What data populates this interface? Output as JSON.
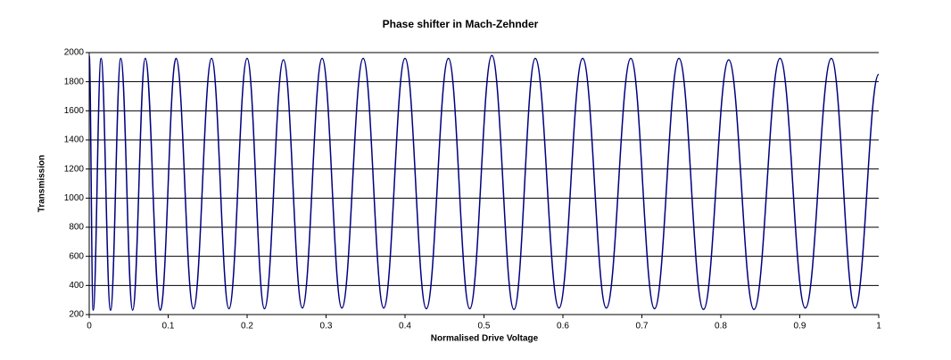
{
  "chart_data": {
    "type": "line",
    "title": "Phase shifter in Mach-Zehnder",
    "x_label": "Normalised Drive Voltage",
    "y_label": "Transmission",
    "x": [
      0,
      0.005,
      0.015,
      0.027,
      0.04,
      0.055,
      0.071,
      0.09,
      0.11,
      0.132,
      0.155,
      0.177,
      0.2,
      0.222,
      0.246,
      0.27,
      0.295,
      0.32,
      0.347,
      0.373,
      0.4,
      0.427,
      0.455,
      0.482,
      0.51,
      0.538,
      0.565,
      0.595,
      0.625,
      0.655,
      0.686,
      0.716,
      0.747,
      0.778,
      0.81,
      0.842,
      0.875,
      0.907,
      0.94,
      0.97,
      1
    ],
    "values": [
      1980,
      230,
      1960,
      230,
      1960,
      230,
      1960,
      230,
      1960,
      240,
      1960,
      240,
      1960,
      240,
      1950,
      245,
      1960,
      245,
      1960,
      245,
      1960,
      240,
      1960,
      240,
      1980,
      235,
      1960,
      245,
      1960,
      245,
      1960,
      240,
      1960,
      235,
      1950,
      235,
      1960,
      245,
      1960,
      245,
      1850
    ],
    "color": "#000080",
    "xlim": [
      0,
      1
    ],
    "xticks": [
      0,
      0.1,
      0.2,
      0.3,
      0.4,
      0.5,
      0.6,
      0.7,
      0.8,
      0.9,
      1
    ],
    "ylim": [
      200,
      2000
    ],
    "yticks": [
      200,
      400,
      600,
      800,
      1000,
      1200,
      1400,
      1600,
      1800,
      2000
    ],
    "grid": true
  }
}
